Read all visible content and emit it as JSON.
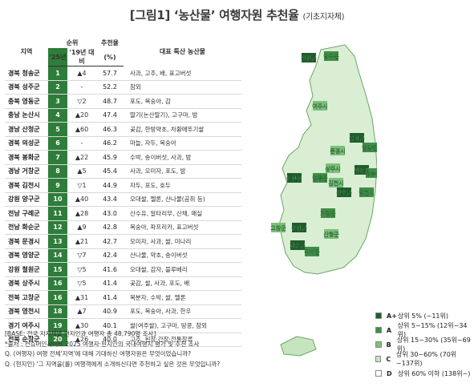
{
  "title": "[그림1] ‘농산물’ 여행자원 추천율",
  "title_sub": "(기초지자체)",
  "header": {
    "region": "지역",
    "rank": "순위",
    "r25": "'25년",
    "r19": "'19년 대비",
    "score": "추천율",
    "score_unit": "(%)",
    "products": "대표 특산 농산물"
  },
  "chart_data": {
    "type": "table",
    "rows": [
      {
        "region": "경북 청송군",
        "rank25": "1",
        "vs19": "▲4",
        "score": "57.7",
        "products": "사과, 고추, 배, 표고버섯"
      },
      {
        "region": "경북 성주군",
        "rank25": "2",
        "vs19": "-",
        "score": "52.2",
        "products": "참외"
      },
      {
        "region": "충북 영동군",
        "rank25": "3",
        "vs19": "▽2",
        "score": "48.7",
        "products": "포도, 복숭아, 감"
      },
      {
        "region": "충남 논산시",
        "rank25": "4",
        "vs19": "▲20",
        "score": "47.4",
        "products": "딸기(논산딸기), 고구마, 밤"
      },
      {
        "region": "경남 산청군",
        "rank25": "5",
        "vs19": "▲60",
        "score": "46.3",
        "products": "곶감, 한방약초, 차황메뚜기쌀"
      },
      {
        "region": "경북 의성군",
        "rank25": "6",
        "vs19": "-",
        "score": "46.2",
        "products": "마늘, 자두, 복숭아"
      },
      {
        "region": "경북 봉화군",
        "rank25": "7",
        "vs19": "▲22",
        "score": "45.9",
        "products": "수박, 송이버섯, 사과, 밤"
      },
      {
        "region": "경남 거창군",
        "rank25": "8",
        "vs19": "▲5",
        "score": "45.4",
        "products": "사과, 오미자, 포도, 밤"
      },
      {
        "region": "경북 김천시",
        "rank25": "9",
        "vs19": "▽1",
        "score": "44.9",
        "products": "자두, 포도, 호두"
      },
      {
        "region": "강원 양구군",
        "rank25": "10",
        "vs19": "▲40",
        "score": "43.4",
        "products": "오대쌀, 멜론, 산나물(곰취 등)"
      },
      {
        "region": "전남 구례군",
        "rank25": "11",
        "vs19": "▲28",
        "score": "43.0",
        "products": "산수유, 알타리무, 산채, 매실"
      },
      {
        "region": "전남 화순군",
        "rank25": "12",
        "vs19": "▲9",
        "score": "42.8",
        "products": "복숭아, 파프리카, 표고버섯"
      },
      {
        "region": "경북 문경시",
        "rank25": "13",
        "vs19": "▲21",
        "score": "42.7",
        "products": "오미자, 사과, 쌀, 미나리"
      },
      {
        "region": "경북 영양군",
        "rank25": "14",
        "vs19": "▽7",
        "score": "42.4",
        "products": "산나물, 약초, 송이버섯"
      },
      {
        "region": "강원 철원군",
        "rank25": "15",
        "vs19": "▽5",
        "score": "41.6",
        "products": "오대쌀, 감자, 블루베리"
      },
      {
        "region": "경북 상주시",
        "rank25": "16",
        "vs19": "▽5",
        "score": "41.4",
        "products": "곶감, 쌀, 사과, 포도, 배"
      },
      {
        "region": "전북 고창군",
        "rank25": "16",
        "vs19": "▲31",
        "score": "41.4",
        "products": "복분자, 수박, 쌀, 멜론"
      },
      {
        "region": "경북 영천시",
        "rank25": "18",
        "vs19": "▲7",
        "score": "40.9",
        "products": "포도, 복숭아, 사과, 한우"
      },
      {
        "region": "경기 여주시",
        "rank25": "19",
        "vs19": "▲30",
        "score": "40.1",
        "products": "쌀(여주쌀), 고구마, 땅콩, 참외"
      },
      {
        "region": "전북 순창군",
        "rank25": "20",
        "vs19": "▲26",
        "score": "40.0",
        "products": "고추, 된장·간장·전통장류"
      }
    ]
  },
  "notes": [
    "[BASE: 전국 지자체별 현지인과 여행자 총 48,790명 조사]",
    "*출처 : 컨슈머인사이트 2025 여행자·현지인의 국내여행지 평가 및 추천 조사",
    "Q. (여행자) 여행 전체'지역'에 대해 기대하신 여행자원은 무엇이었습니까?",
    "Q. (현지인) '그 지역을(를) 여행객에게 소개하신다면 추천하고 싶은 것은 무엇입니까?"
  ],
  "map_labels": [
    "철원군",
    "양구군",
    "여주시",
    "봉화군",
    "영양군",
    "문경시",
    "의성군",
    "청송군",
    "상주시",
    "논산시",
    "영동군",
    "김천시",
    "성주군",
    "영천시",
    "고창군",
    "순창군",
    "거창군",
    "산청군",
    "화순군",
    "구례군"
  ],
  "legend": [
    {
      "grade": "A+",
      "label": "상위 5% (~11위)",
      "color": "#1f5e2b"
    },
    {
      "grade": "A",
      "label": "상위 5~15% (12위~34위)",
      "color": "#3f8f45"
    },
    {
      "grade": "B",
      "label": "상위 15~30% (35위~69위)",
      "color": "#7cc07a"
    },
    {
      "grade": "C",
      "label": "상위 30~60% (70위~137위)",
      "color": "#c6e5be"
    },
    {
      "grade": "D",
      "label": "상위 60% 이하 (138위~)",
      "color": "#ffffff"
    }
  ]
}
